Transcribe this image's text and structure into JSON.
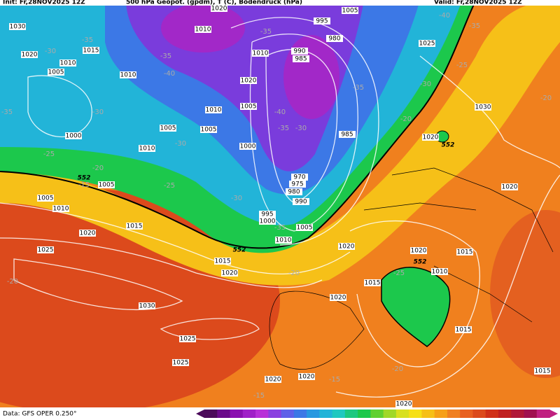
{
  "header": {
    "init": "Init: Fr,28NOV2025 12Z",
    "title": "500 hPa Geopot. (gpdm), T (C), Bodendruck (hPa)",
    "valid": "Valid: Fr,28NOV2025 12Z"
  },
  "footer": {
    "source": "Data: GFS OPER 0.250°"
  },
  "isobar_labels": [
    "1030",
    "1020",
    "1015",
    "1010",
    "1005",
    "1010",
    "1000",
    "1005",
    "1010",
    "1005",
    "1010",
    "1005",
    "1000",
    "1020",
    "1010",
    "1010",
    "1020",
    "990",
    "985",
    "980",
    "995",
    "1005",
    "985",
    "970",
    "975",
    "980",
    "990",
    "995",
    "1000",
    "1005",
    "1010",
    "1020",
    "1015",
    "1020",
    "1025",
    "1020",
    "1015",
    "1010",
    "1005",
    "1005",
    "1030",
    "1025",
    "1025",
    "1020",
    "1020",
    "1020",
    "1015",
    "1020",
    "1010",
    "1015",
    "1015",
    "1020",
    "1015",
    "1020",
    "1030",
    "1025",
    "1020"
  ],
  "geopotential_labels": [
    "552",
    "552",
    "552",
    "552"
  ],
  "temperature_labels": [
    "-35",
    "-30",
    "-35",
    "-40",
    "-35",
    "-30",
    "-25",
    "-30",
    "-25",
    "-20",
    "-15",
    "-30",
    "-35",
    "-40",
    "-35",
    "-30",
    "-35",
    "-30",
    "-25",
    "-40",
    "-35",
    "-20",
    "-20",
    "-20",
    "-25",
    "-20",
    "-20",
    "-15",
    "-15",
    "-35"
  ]
}
